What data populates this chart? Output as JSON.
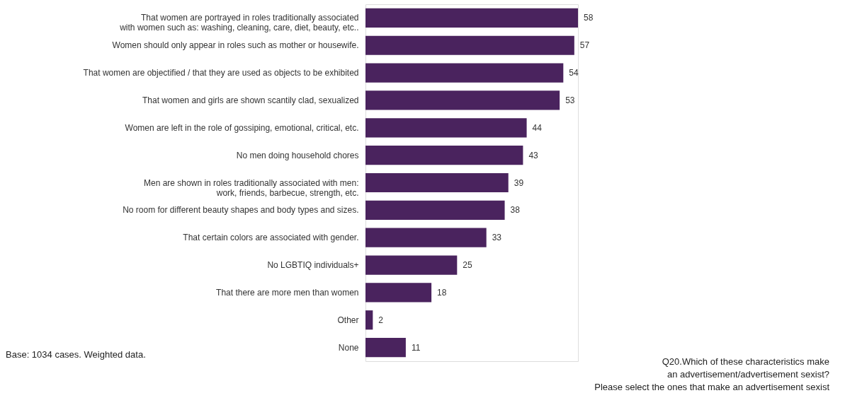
{
  "chart_data": {
    "type": "bar",
    "orientation": "horizontal",
    "data_labels": true,
    "color": "#4a235e",
    "categories": [
      "That women are portrayed in roles traditionally associated\nwith women such as: washing, cleaning, care, diet, beauty, etc..",
      "Women should only appear in roles such as mother or housewife.",
      "That women are objectified / that they are used as objects to be exhibited",
      "That women and girls are shown scantily clad, sexualized",
      "Women are left in the role of gossiping, emotional, critical, etc.",
      "No men doing household chores",
      "Men are shown in roles traditionally associated with men:\nwork, friends, barbecue, strength, etc.",
      "No room for different beauty shapes and body types and sizes.",
      "That certain colors are associated with gender.",
      "No LGBTIQ individuals+",
      "That there are more men than women",
      "Other",
      "None"
    ],
    "values": [
      58,
      57,
      54,
      53,
      44,
      43,
      39,
      38,
      33,
      25,
      18,
      2,
      11
    ],
    "annotations": [
      "Base: 1034 cases. Weighted data.",
      "Q20.Which of these characteristics make\nan advertisement/advertisement sexist?\nPlease select the ones that make an advertisement sexist"
    ]
  }
}
